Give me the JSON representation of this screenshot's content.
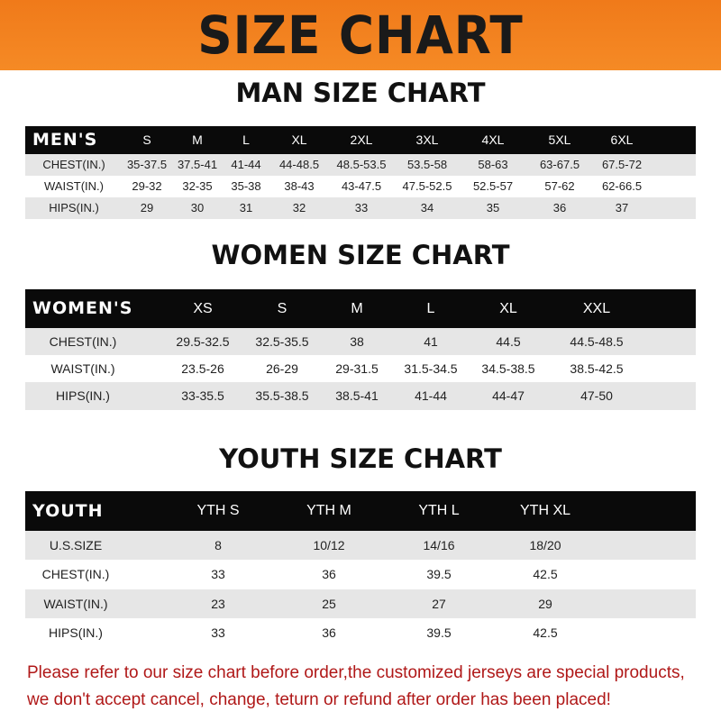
{
  "banner_title": "SIZE CHART",
  "men": {
    "title": "MAN SIZE CHART",
    "header_label": "MEN'S",
    "sizes": [
      "S",
      "M",
      "L",
      "XL",
      "2XL",
      "3XL",
      "4XL",
      "5XL",
      "6XL"
    ],
    "rows": [
      {
        "label": "CHEST(IN.)",
        "values": [
          "35-37.5",
          "37.5-41",
          "41-44",
          "44-48.5",
          "48.5-53.5",
          "53.5-58",
          "58-63",
          "63-67.5",
          "67.5-72"
        ]
      },
      {
        "label": "WAIST(IN.)",
        "values": [
          "29-32",
          "32-35",
          "35-38",
          "38-43",
          "43-47.5",
          "47.5-52.5",
          "52.5-57",
          "57-62",
          "62-66.5"
        ]
      },
      {
        "label": "HIPS(IN.)",
        "values": [
          "29",
          "30",
          "31",
          "32",
          "33",
          "34",
          "35",
          "36",
          "37"
        ]
      }
    ]
  },
  "women": {
    "title": "WOMEN SIZE CHART",
    "header_label": "WOMEN'S",
    "sizes": [
      "XS",
      "S",
      "M",
      "L",
      "XL",
      "XXL"
    ],
    "rows": [
      {
        "label": "CHEST(IN.)",
        "values": [
          "29.5-32.5",
          "32.5-35.5",
          "38",
          "41",
          "44.5",
          "44.5-48.5"
        ]
      },
      {
        "label": "WAIST(IN.)",
        "values": [
          "23.5-26",
          "26-29",
          "29-31.5",
          "31.5-34.5",
          "34.5-38.5",
          "38.5-42.5"
        ]
      },
      {
        "label": "HIPS(IN.)",
        "values": [
          "33-35.5",
          "35.5-38.5",
          "38.5-41",
          "41-44",
          "44-47",
          "47-50"
        ]
      }
    ]
  },
  "youth": {
    "title": "YOUTH SIZE CHART",
    "header_label": "YOUTH",
    "sizes": [
      "YTH S",
      "YTH M",
      "YTH L",
      "YTH XL"
    ],
    "rows": [
      {
        "label": "U.S.SIZE",
        "values": [
          "8",
          "10/12",
          "14/16",
          "18/20"
        ]
      },
      {
        "label": "CHEST(IN.)",
        "values": [
          "33",
          "36",
          "39.5",
          "42.5"
        ]
      },
      {
        "label": "WAIST(IN.)",
        "values": [
          "23",
          "25",
          "27",
          "29"
        ]
      },
      {
        "label": "HIPS(IN.)",
        "values": [
          "33",
          "36",
          "39.5",
          "42.5"
        ]
      }
    ]
  },
  "notice": [
    "Please refer to our size chart before order,the customized jerseys are special products,",
    "we don't accept cancel, change, teturn or refund after order has been placed!"
  ],
  "colors": {
    "banner": "#f58a25",
    "header_row": "#0a0a0a",
    "stripe": "#e6e6e6",
    "notice": "#b01818"
  }
}
